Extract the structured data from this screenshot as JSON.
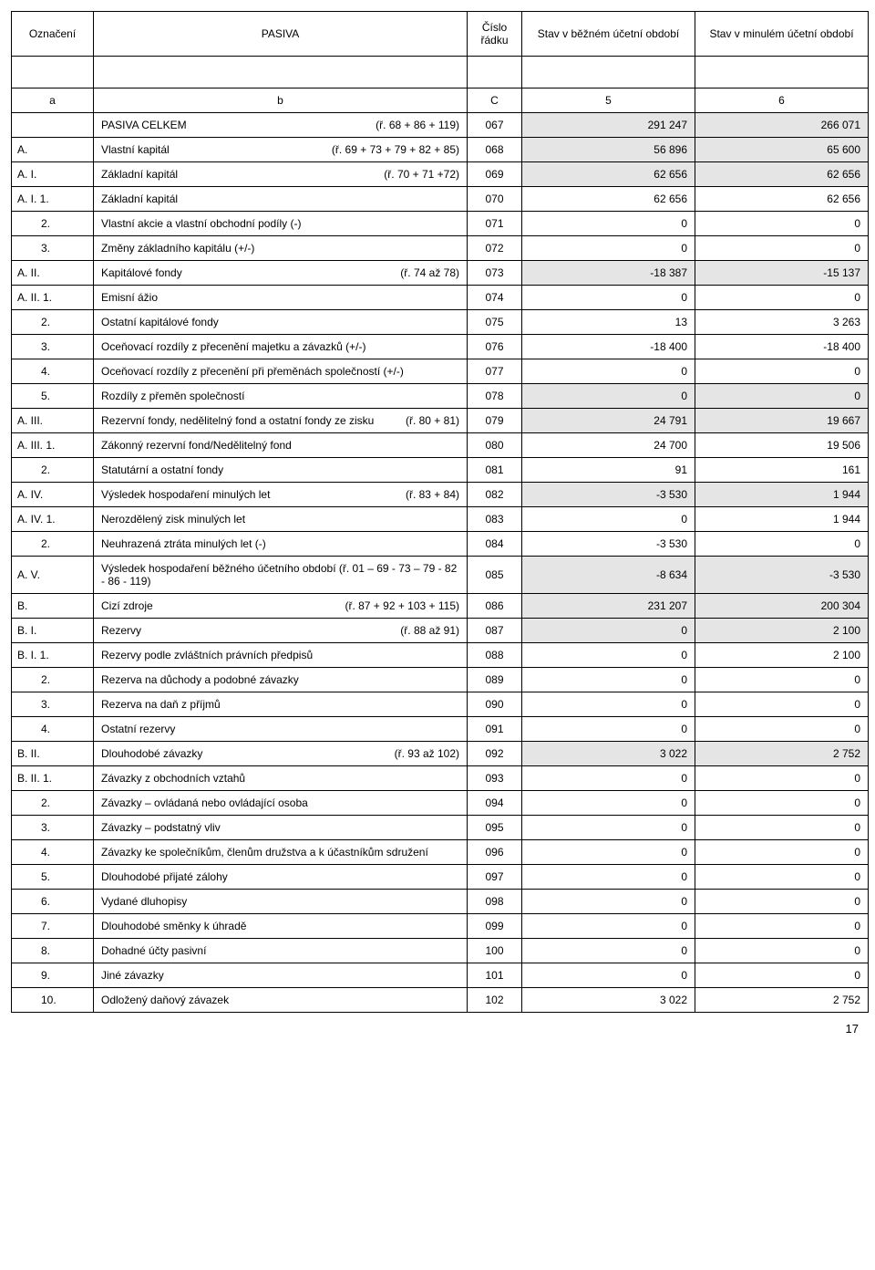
{
  "header": {
    "col1": "Označení",
    "col2": "PASIVA",
    "col3": "Číslo řádku",
    "col4": "Stav v běžném účetní období",
    "col5": "Stav v minulém účetní období",
    "sub1": "a",
    "sub2": "b",
    "sub3": "C",
    "sub4": "5",
    "sub5": "6"
  },
  "rows": [
    {
      "oz": "",
      "ind": false,
      "desc": "PASIVA CELKEM",
      "ref": "(ř. 68 + 86 + 119)",
      "c": "067",
      "v1": "291 247",
      "v2": "266 071",
      "shade": true
    },
    {
      "oz": "A.",
      "ind": false,
      "desc": "Vlastní kapitál",
      "ref": "(ř. 69 + 73 + 79 + 82 + 85)",
      "c": "068",
      "v1": "56 896",
      "v2": "65 600",
      "shade": true
    },
    {
      "oz": "A.  I.",
      "ind": false,
      "desc": "Základní kapitál",
      "ref": "(ř. 70 + 71 +72)",
      "c": "069",
      "v1": "62 656",
      "v2": "62 656",
      "shade": true
    },
    {
      "oz": "A.  I.  1.",
      "ind": false,
      "desc": "Základní kapitál",
      "ref": "",
      "c": "070",
      "v1": "62 656",
      "v2": "62 656",
      "shade": false
    },
    {
      "oz": "2.",
      "ind": true,
      "desc": "Vlastní akcie a vlastní obchodní podíly (-)",
      "ref": "",
      "c": "071",
      "v1": "0",
      "v2": "0",
      "shade": false
    },
    {
      "oz": "3.",
      "ind": true,
      "desc": "Změny základního kapitálu (+/-)",
      "ref": "",
      "c": "072",
      "v1": "0",
      "v2": "0",
      "shade": false
    },
    {
      "oz": "A.  II.",
      "ind": false,
      "desc": "Kapitálové fondy",
      "ref": "(ř. 74 až 78)",
      "c": "073",
      "v1": "-18 387",
      "v2": "-15 137",
      "shade": true
    },
    {
      "oz": "A.  II.  1.",
      "ind": false,
      "desc": "Emisní ážio",
      "ref": "",
      "c": "074",
      "v1": "0",
      "v2": "0",
      "shade": false
    },
    {
      "oz": "2.",
      "ind": true,
      "desc": "Ostatní kapitálové fondy",
      "ref": "",
      "c": "075",
      "v1": "13",
      "v2": "3 263",
      "shade": false
    },
    {
      "oz": "3.",
      "ind": true,
      "desc": "Oceňovací rozdíly z přecenění majetku a závazků (+/-)",
      "ref": "",
      "c": "076",
      "v1": "-18 400",
      "v2": "-18 400",
      "shade": false
    },
    {
      "oz": "4.",
      "ind": true,
      "desc": "Oceňovací rozdíly z přecenění při přeměnách společností (+/-)",
      "ref": "",
      "c": "077",
      "v1": "0",
      "v2": "0",
      "shade": false
    },
    {
      "oz": "5.",
      "ind": true,
      "desc": "Rozdíly z přeměn společností",
      "ref": "",
      "c": "078",
      "v1": "0",
      "v2": "0",
      "shade": true
    },
    {
      "oz": "A.  III.",
      "ind": false,
      "desc": "Rezervní fondy, nedělitelný fond a ostatní fondy ze zisku",
      "ref": "(ř. 80 + 81)",
      "c": "079",
      "v1": "24 791",
      "v2": "19 667",
      "shade": true
    },
    {
      "oz": "A.  III.  1.",
      "ind": false,
      "desc": "Zákonný rezervní fond/Nedělitelný fond",
      "ref": "",
      "c": "080",
      "v1": "24 700",
      "v2": "19 506",
      "shade": false
    },
    {
      "oz": "2.",
      "ind": true,
      "desc": "Statutární a ostatní fondy",
      "ref": "",
      "c": "081",
      "v1": "91",
      "v2": "161",
      "shade": false
    },
    {
      "oz": "A.  IV.",
      "ind": false,
      "desc": "Výsledek hospodaření minulých let",
      "ref": "(ř. 83 + 84)",
      "c": "082",
      "v1": "-3 530",
      "v2": "1 944",
      "shade": true
    },
    {
      "oz": "A.  IV.  1.",
      "ind": false,
      "desc": "Nerozdělený zisk minulých let",
      "ref": "",
      "c": "083",
      "v1": "0",
      "v2": "1 944",
      "shade": false
    },
    {
      "oz": "2.",
      "ind": true,
      "desc": "Neuhrazená ztráta minulých let (-)",
      "ref": "",
      "c": "084",
      "v1": "-3 530",
      "v2": "0",
      "shade": false
    },
    {
      "oz": "A.  V.",
      "ind": false,
      "desc": "Výsledek hospodaření běžného účetního období (ř. 01 – 69 - 73 – 79 - 82 - 86 - 119)",
      "ref": "",
      "c": "085",
      "v1": "-8 634",
      "v2": "-3 530",
      "shade": true
    },
    {
      "oz": "B.",
      "ind": false,
      "desc": "Cizí zdroje",
      "ref": "(ř. 87 + 92 + 103 + 115)",
      "c": "086",
      "v1": "231 207",
      "v2": "200 304",
      "shade": true
    },
    {
      "oz": "B.  I.",
      "ind": false,
      "desc": "Rezervy",
      "ref": "(ř. 88 až 91)",
      "c": "087",
      "v1": "0",
      "v2": "2 100",
      "shade": true
    },
    {
      "oz": "B.  I.  1.",
      "ind": false,
      "desc": "Rezervy podle zvláštních právních předpisů",
      "ref": "",
      "c": "088",
      "v1": "0",
      "v2": "2 100",
      "shade": false
    },
    {
      "oz": "2.",
      "ind": true,
      "desc": "Rezerva na důchody a podobné závazky",
      "ref": "",
      "c": "089",
      "v1": "0",
      "v2": "0",
      "shade": false
    },
    {
      "oz": "3.",
      "ind": true,
      "desc": "Rezerva na daň z příjmů",
      "ref": "",
      "c": "090",
      "v1": "0",
      "v2": "0",
      "shade": false
    },
    {
      "oz": "4.",
      "ind": true,
      "desc": "Ostatní rezervy",
      "ref": "",
      "c": "091",
      "v1": "0",
      "v2": "0",
      "shade": false
    },
    {
      "oz": "B.  II.",
      "ind": false,
      "desc": "Dlouhodobé závazky",
      "ref": "(ř. 93 až 102)",
      "c": "092",
      "v1": "3 022",
      "v2": "2 752",
      "shade": true
    },
    {
      "oz": "B.  II.  1.",
      "ind": false,
      "desc": "Závazky z obchodních vztahů",
      "ref": "",
      "c": "093",
      "v1": "0",
      "v2": "0",
      "shade": false
    },
    {
      "oz": "2.",
      "ind": true,
      "desc": "Závazky – ovládaná nebo ovládající osoba",
      "ref": "",
      "c": "094",
      "v1": "0",
      "v2": "0",
      "shade": false
    },
    {
      "oz": "3.",
      "ind": true,
      "desc": "Závazky – podstatný vliv",
      "ref": "",
      "c": "095",
      "v1": "0",
      "v2": "0",
      "shade": false
    },
    {
      "oz": "4.",
      "ind": true,
      "desc": "Závazky ke společníkům, členům družstva a k účastníkům sdružení",
      "ref": "",
      "c": "096",
      "v1": "0",
      "v2": "0",
      "shade": false
    },
    {
      "oz": "5.",
      "ind": true,
      "desc": "Dlouhodobé  přijaté zálohy",
      "ref": "",
      "c": "097",
      "v1": "0",
      "v2": "0",
      "shade": false
    },
    {
      "oz": "6.",
      "ind": true,
      "desc": "Vydané dluhopisy",
      "ref": "",
      "c": "098",
      "v1": "0",
      "v2": "0",
      "shade": false
    },
    {
      "oz": "7.",
      "ind": true,
      "desc": "Dlouhodobé směnky k úhradě",
      "ref": "",
      "c": "099",
      "v1": "0",
      "v2": "0",
      "shade": false
    },
    {
      "oz": "8.",
      "ind": true,
      "desc": "Dohadné účty pasivní",
      "ref": "",
      "c": "100",
      "v1": "0",
      "v2": "0",
      "shade": false
    },
    {
      "oz": "9.",
      "ind": true,
      "desc": "Jiné závazky",
      "ref": "",
      "c": "101",
      "v1": "0",
      "v2": "0",
      "shade": false
    },
    {
      "oz": "10.",
      "ind": true,
      "desc": "Odložený daňový závazek",
      "ref": "",
      "c": "102",
      "v1": "3 022",
      "v2": "2 752",
      "shade": false
    }
  ],
  "pagenum": "17"
}
